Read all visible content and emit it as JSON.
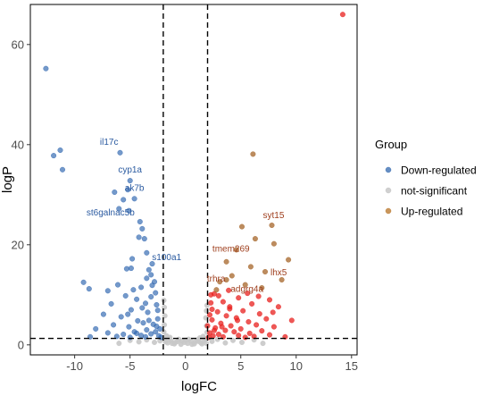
{
  "chart_data": {
    "type": "scatter",
    "title": "",
    "xlabel": "logFC",
    "ylabel": "logP",
    "xlim": [
      -14,
      15.5
    ],
    "ylim": [
      -2,
      68
    ],
    "x_ticks": [
      -10,
      -5,
      0,
      5,
      10,
      15
    ],
    "y_ticks": [
      0,
      20,
      40,
      60
    ],
    "thresholds": {
      "x": [
        -2,
        2
      ],
      "y": 1.3
    },
    "grid": false,
    "legend": {
      "title": "Group",
      "position": "right",
      "entries": [
        {
          "name": "Down-regulated",
          "color": "#4a7ab8"
        },
        {
          "name": "not-significant",
          "color": "#c8c8c8"
        },
        {
          "name": "Up-regulated",
          "color": "#c0843f"
        }
      ]
    },
    "series": [
      {
        "name": "Down-regulated",
        "color": "#2a62ae",
        "points": [
          [
            -12.6,
            55.2
          ],
          [
            -11.3,
            38.9
          ],
          [
            -11.9,
            37.8
          ],
          [
            -11.1,
            35.0
          ],
          [
            -5.9,
            38.4
          ],
          [
            -5.0,
            32.8
          ],
          [
            -5.2,
            31.0
          ],
          [
            -4.6,
            29.2
          ],
          [
            -6.4,
            30.5
          ],
          [
            -5.6,
            29.0
          ],
          [
            -6.0,
            27.2
          ],
          [
            -5.1,
            26.8
          ],
          [
            -4.1,
            24.6
          ],
          [
            -3.9,
            23.2
          ],
          [
            -4.2,
            21.5
          ],
          [
            -3.7,
            21.2
          ],
          [
            -3.5,
            18.4
          ],
          [
            -4.8,
            17.2
          ],
          [
            -5.3,
            15.2
          ],
          [
            -3.3,
            15.0
          ],
          [
            -3.1,
            14.0
          ],
          [
            -9.2,
            12.5
          ],
          [
            -8.7,
            11.2
          ],
          [
            -6.1,
            12.0
          ],
          [
            -7.0,
            10.8
          ],
          [
            -4.0,
            11.5
          ],
          [
            -3.0,
            11.9
          ],
          [
            -2.8,
            12.6
          ],
          [
            -5.4,
            9.8
          ],
          [
            -4.4,
            9.1
          ],
          [
            -3.6,
            8.3
          ],
          [
            -3.1,
            9.6
          ],
          [
            -6.7,
            8.2
          ],
          [
            -2.6,
            8.0
          ],
          [
            -4.9,
            7.0
          ],
          [
            -3.4,
            6.5
          ],
          [
            -7.4,
            6.1
          ],
          [
            -5.8,
            5.6
          ],
          [
            -2.5,
            5.2
          ],
          [
            -4.3,
            4.8
          ],
          [
            -3.8,
            4.4
          ],
          [
            -6.5,
            4.0
          ],
          [
            -2.9,
            4.1
          ],
          [
            -5.1,
            3.6
          ],
          [
            -8.1,
            3.2
          ],
          [
            -3.5,
            3.0
          ],
          [
            -2.3,
            3.2
          ],
          [
            -4.6,
            2.6
          ],
          [
            -7.0,
            2.4
          ],
          [
            -5.6,
            2.1
          ],
          [
            -3.1,
            2.2
          ],
          [
            -2.7,
            2.6
          ],
          [
            -4.0,
            1.9
          ],
          [
            -6.2,
            1.7
          ],
          [
            -2.4,
            1.8
          ],
          [
            -8.6,
            1.6
          ],
          [
            -5.0,
            1.5
          ],
          [
            -3.6,
            1.6
          ],
          [
            -2.2,
            1.5
          ],
          [
            -4.4,
            2.3
          ],
          [
            -2.6,
            3.7
          ],
          [
            -3.3,
            4.9
          ],
          [
            -5.2,
            6.1
          ],
          [
            -2.5,
            6.9
          ],
          [
            -3.9,
            7.4
          ],
          [
            -4.7,
            11.0
          ],
          [
            -2.7,
            10.4
          ],
          [
            -3.5,
            13.3
          ],
          [
            -4.9,
            15.3
          ],
          [
            -3.0,
            16.2
          ]
        ]
      },
      {
        "name": "not-significant",
        "color": "#c8c8c8",
        "points": [
          [
            -1.9,
            1.1
          ],
          [
            -1.6,
            0.4
          ],
          [
            -1.3,
            0.9
          ],
          [
            -1.0,
            0.2
          ],
          [
            -0.7,
            0.7
          ],
          [
            -0.4,
            0.1
          ],
          [
            -0.1,
            0.5
          ],
          [
            0.2,
            0.3
          ],
          [
            0.5,
            0.8
          ],
          [
            0.8,
            0.2
          ],
          [
            1.1,
            1.0
          ],
          [
            1.4,
            0.4
          ],
          [
            1.7,
            0.9
          ],
          [
            1.9,
            0.3
          ],
          [
            -1.8,
            0.6
          ],
          [
            -1.2,
            0.3
          ],
          [
            -0.6,
            1.1
          ],
          [
            0.0,
            0.9
          ],
          [
            0.6,
            0.1
          ],
          [
            1.2,
            0.7
          ],
          [
            1.8,
            1.2
          ],
          [
            -1.5,
            1.2
          ],
          [
            -0.9,
            0.5
          ],
          [
            -0.3,
            0.8
          ],
          [
            0.3,
            1.1
          ],
          [
            0.9,
            0.6
          ],
          [
            1.5,
            0.2
          ],
          [
            -2.3,
            0.8
          ],
          [
            -2.8,
            0.5
          ],
          [
            -3.5,
            1.0
          ],
          [
            -4.2,
            0.6
          ],
          [
            -5.0,
            0.9
          ],
          [
            -6.0,
            0.3
          ],
          [
            2.4,
            0.7
          ],
          [
            2.9,
            1.1
          ],
          [
            3.6,
            0.4
          ],
          [
            4.3,
            0.9
          ],
          [
            5.1,
            0.5
          ],
          [
            6.2,
            1.0
          ],
          [
            7.0,
            0.3
          ],
          [
            -1.95,
            2.6
          ],
          [
            -1.9,
            4.0
          ],
          [
            -1.85,
            5.8
          ],
          [
            -1.9,
            7.5
          ],
          [
            -1.95,
            8.9
          ],
          [
            1.95,
            2.5
          ],
          [
            1.9,
            3.8
          ],
          [
            1.85,
            5.4
          ],
          [
            1.9,
            6.8
          ],
          [
            1.95,
            7.9
          ],
          [
            -1.7,
            1.8
          ],
          [
            -1.4,
            1.5
          ],
          [
            1.6,
            1.7
          ],
          [
            1.3,
            1.4
          ]
        ]
      },
      {
        "name": "Up-regulated",
        "color": "#a6662a",
        "points": [
          [
            14.2,
            66.0
          ],
          [
            6.1,
            38.1
          ],
          [
            7.8,
            23.9
          ],
          [
            5.1,
            23.6
          ],
          [
            6.3,
            21.2
          ],
          [
            8.0,
            20.2
          ],
          [
            4.6,
            19.0
          ],
          [
            9.3,
            17.0
          ],
          [
            3.7,
            16.6
          ],
          [
            5.9,
            15.6
          ],
          [
            7.2,
            14.6
          ],
          [
            4.2,
            13.8
          ],
          [
            8.7,
            13.0
          ],
          [
            3.1,
            12.6
          ],
          [
            5.4,
            12.0
          ],
          [
            6.9,
            11.4
          ],
          [
            2.6,
            10.2
          ],
          [
            4.8,
            9.4
          ],
          [
            7.6,
            9.0
          ],
          [
            3.4,
            8.6
          ],
          [
            6.0,
            8.2
          ],
          [
            2.3,
            8.4
          ],
          [
            4.0,
            7.6
          ],
          [
            8.4,
            7.6
          ],
          [
            5.2,
            6.8
          ],
          [
            2.9,
            6.6
          ],
          [
            6.7,
            6.2
          ],
          [
            3.7,
            5.8
          ],
          [
            4.6,
            5.4
          ],
          [
            7.3,
            5.2
          ],
          [
            2.4,
            5.0
          ],
          [
            5.7,
            4.6
          ],
          [
            3.2,
            4.3
          ],
          [
            6.4,
            4.0
          ],
          [
            4.1,
            3.8
          ],
          [
            8.0,
            3.6
          ],
          [
            2.7,
            3.4
          ],
          [
            5.0,
            3.2
          ],
          [
            3.6,
            2.9
          ],
          [
            6.9,
            2.8
          ],
          [
            4.4,
            2.6
          ],
          [
            2.2,
            2.4
          ],
          [
            5.8,
            2.3
          ],
          [
            3.0,
            2.1
          ],
          [
            7.6,
            2.0
          ],
          [
            4.8,
            1.9
          ],
          [
            2.5,
            1.8
          ],
          [
            6.2,
            1.7
          ],
          [
            3.4,
            1.6
          ],
          [
            9.0,
            1.6
          ],
          [
            2.1,
            1.5
          ],
          [
            5.4,
            1.5
          ],
          [
            4.0,
            7.2
          ],
          [
            3.0,
            9.8
          ],
          [
            2.4,
            7.1
          ],
          [
            2.8,
            11.0
          ],
          [
            3.9,
            10.9
          ],
          [
            2.2,
            6.0
          ],
          [
            3.3,
            3.6
          ],
          [
            5.6,
            10.3
          ],
          [
            6.6,
            9.7
          ],
          [
            7.9,
            6.5
          ],
          [
            9.6,
            4.9
          ],
          [
            2.6,
            2.9
          ],
          [
            4.7,
            4.9
          ],
          [
            3.7,
            13.0
          ],
          [
            2.0,
            3.8
          ],
          [
            2.3,
            10.0
          ]
        ]
      }
    ],
    "annotations": [
      {
        "text": "il17c",
        "x": -5.9,
        "y": 38.4,
        "group": "Down-regulated"
      },
      {
        "text": "cyp1a",
        "x": -5.0,
        "y": 32.8,
        "group": "Down-regulated"
      },
      {
        "text": "ak7b",
        "x": -4.6,
        "y": 29.2,
        "group": "Down-regulated"
      },
      {
        "text": "st6galnac5b",
        "x": -4.1,
        "y": 24.6,
        "group": "Down-regulated"
      },
      {
        "text": "s100a1",
        "x": -3.5,
        "y": 18.4,
        "group": "Down-regulated"
      },
      {
        "text": "syt15",
        "x": 7.8,
        "y": 23.9,
        "group": "Up-regulated"
      },
      {
        "text": "tmem269",
        "x": 4.6,
        "y": 19.0,
        "group": "Up-regulated"
      },
      {
        "text": "lhx5",
        "x": 7.2,
        "y": 14.6,
        "group": "Up-regulated"
      },
      {
        "text": "trhra",
        "x": 3.1,
        "y": 12.6,
        "group": "Up-regulated"
      },
      {
        "text": "adgrg4a",
        "x": 5.4,
        "y": 12.0,
        "group": "Up-regulated"
      }
    ]
  }
}
